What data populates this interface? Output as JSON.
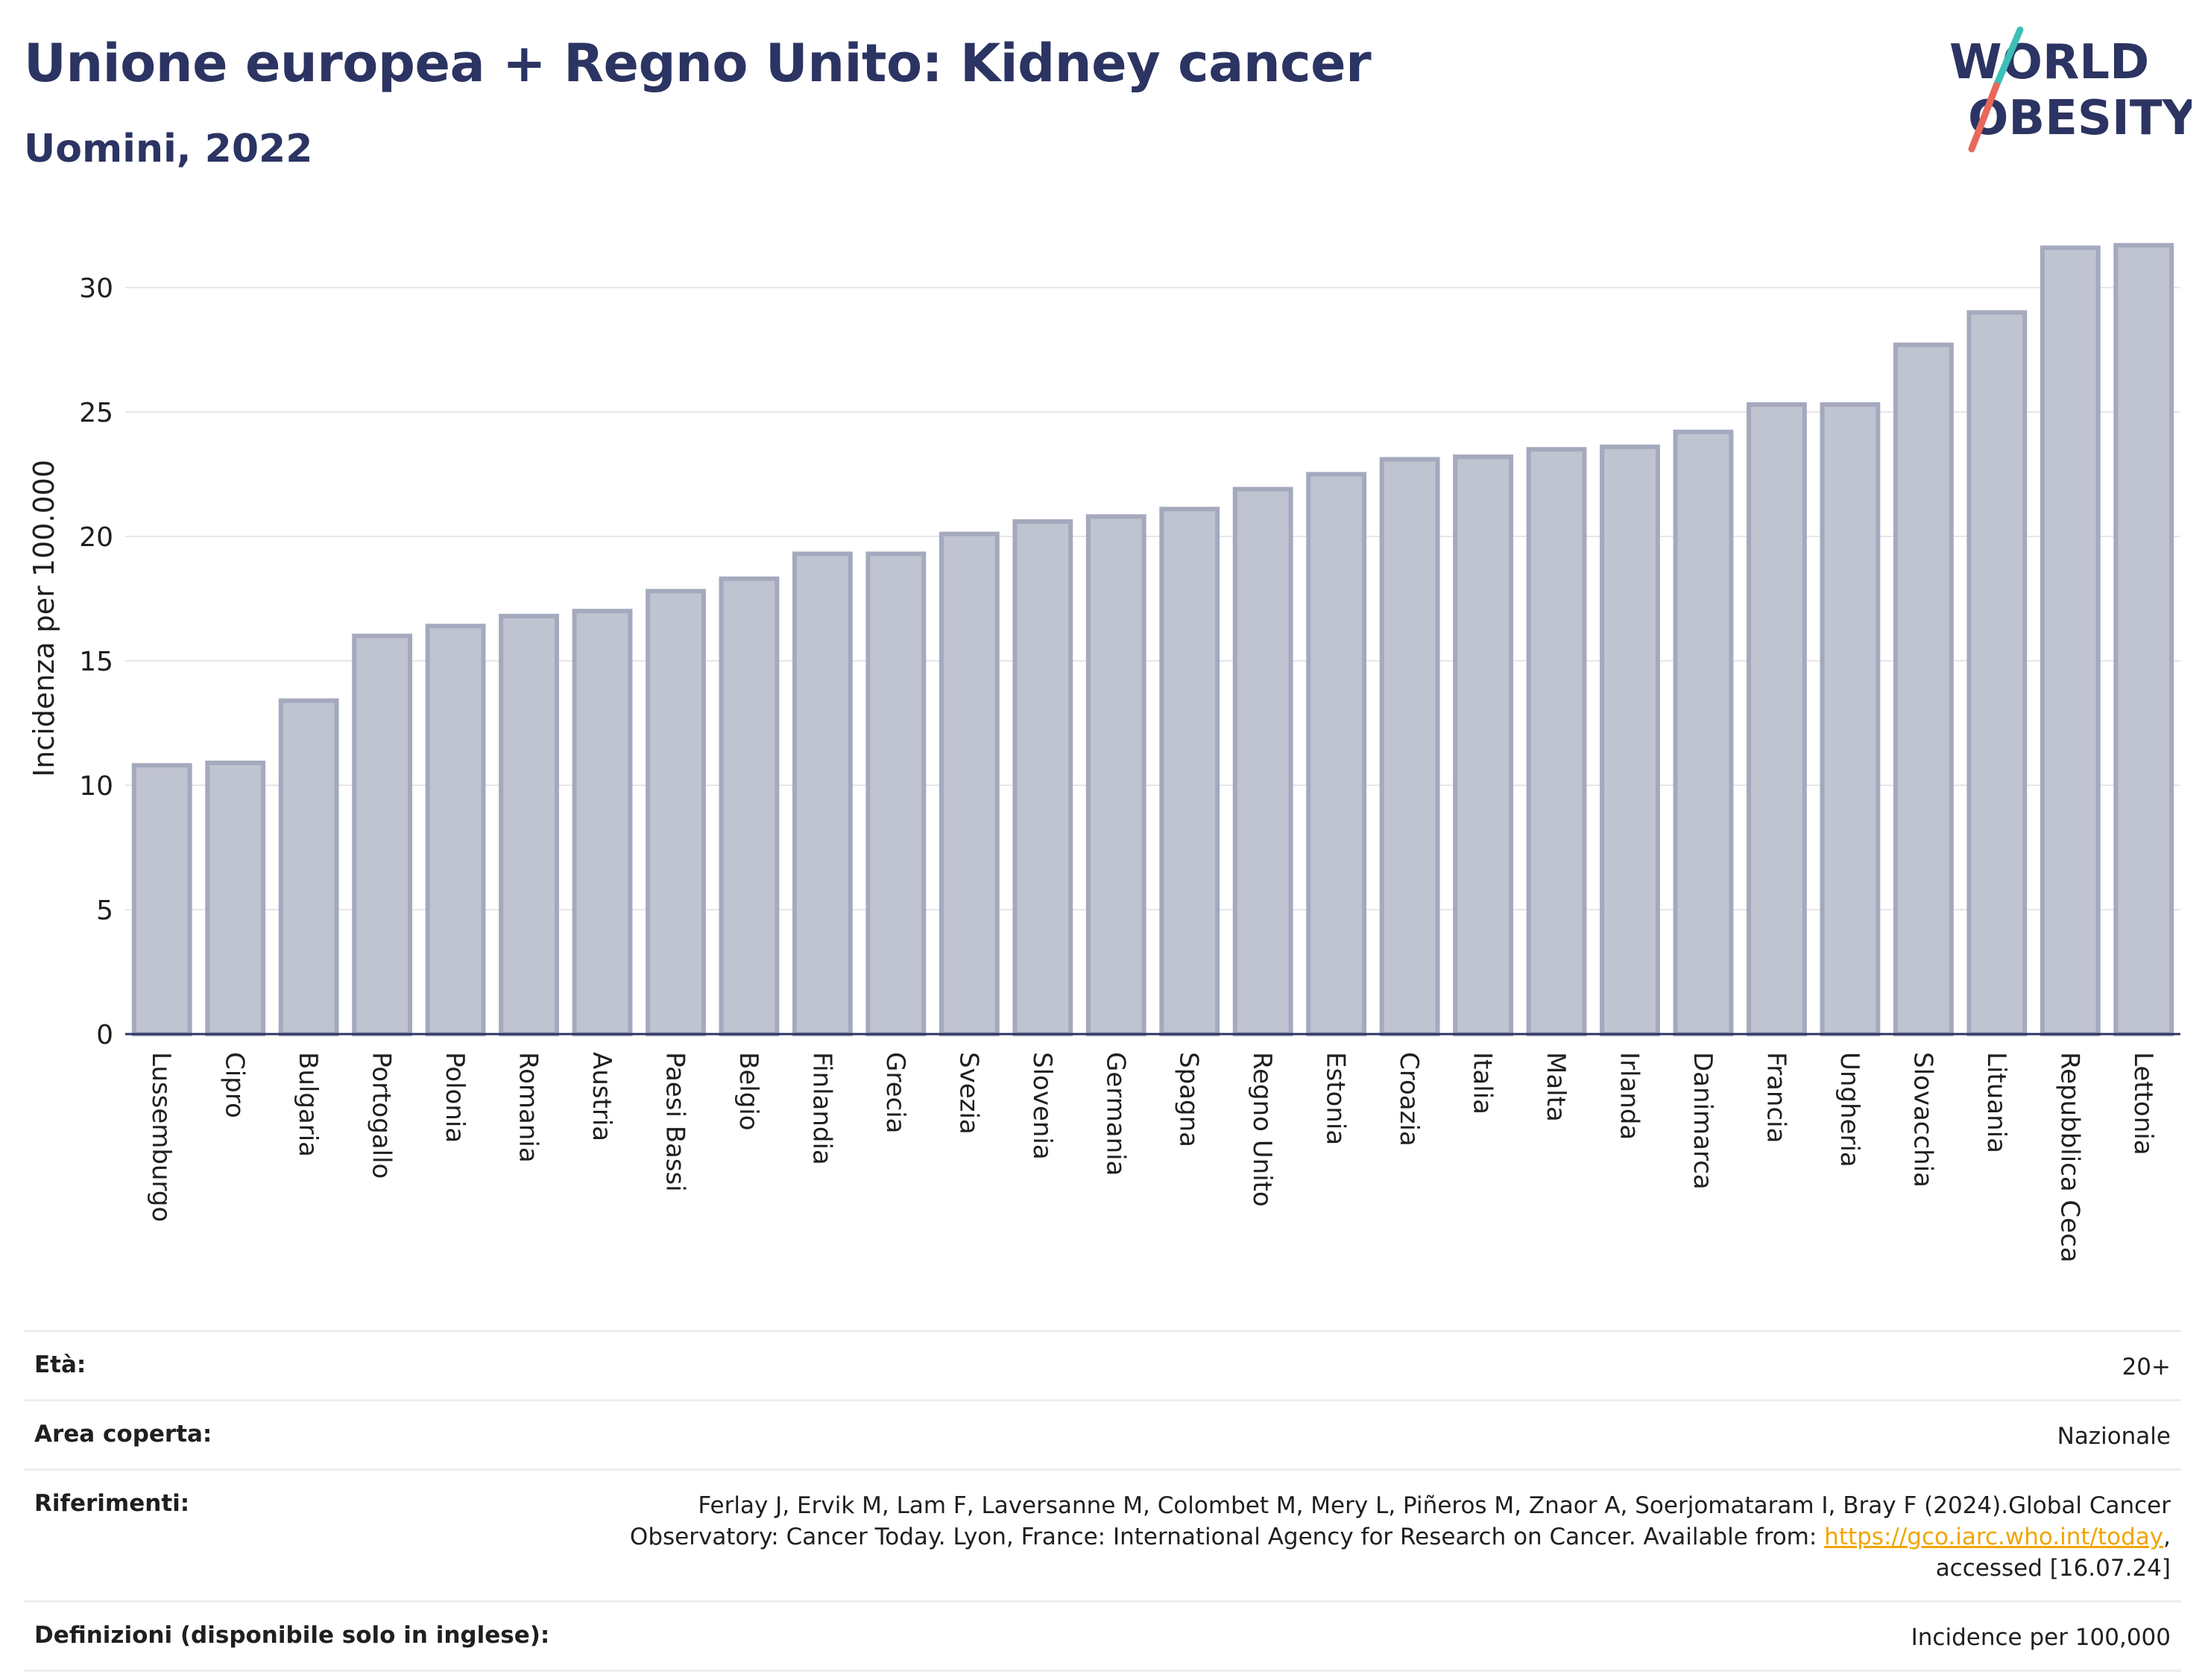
{
  "header": {
    "title": "Unione europea + Regno Unito: Kidney cancer",
    "subtitle": "Uomini, 2022",
    "logo_line1": "WORLD",
    "logo_line2": "OBESITY"
  },
  "colors": {
    "title": "#2b3462",
    "bar_fill": "#c0c3d0",
    "bar_stroke": "#a4a9bd",
    "logo_teal": "#3bbfb6",
    "logo_coral": "#e8685a",
    "link": "#f0a500"
  },
  "chart_data": {
    "type": "bar",
    "ylabel": "Incidenza per 100.000",
    "xlabel": "",
    "ylim": [
      0,
      32
    ],
    "yticks": [
      0,
      5,
      10,
      15,
      20,
      25,
      30
    ],
    "grid": true,
    "categories": [
      "Lussemburgo",
      "Cipro",
      "Bulgaria",
      "Portogallo",
      "Polonia",
      "Romania",
      "Austria",
      "Paesi Bassi",
      "Belgio",
      "Finlandia",
      "Grecia",
      "Svezia",
      "Slovenia",
      "Germania",
      "Spagna",
      "Regno Unito",
      "Estonia",
      "Croazia",
      "Italia",
      "Malta",
      "Irlanda",
      "Danimarca",
      "Francia",
      "Ungheria",
      "Slovacchia",
      "Lituania",
      "Repubblica Ceca",
      "Lettonia"
    ],
    "values": [
      10.8,
      10.9,
      13.4,
      16.0,
      16.4,
      16.8,
      17.0,
      17.8,
      18.3,
      19.3,
      19.3,
      20.1,
      20.6,
      20.8,
      21.1,
      21.9,
      22.5,
      23.1,
      23.2,
      23.5,
      23.6,
      24.2,
      25.3,
      25.3,
      27.7,
      29.0,
      31.6,
      31.7
    ]
  },
  "meta": {
    "age_label": "Età:",
    "age_value": "20+",
    "area_label": "Area coperta:",
    "area_value": "Nazionale",
    "refs_label": "Riferimenti:",
    "refs_line1": "Ferlay J, Ervik M, Lam F, Laversanne M, Colombet M, Mery L, Piñeros M, Znaor A, Soerjomataram I, Bray F (2024).Global Cancer",
    "refs_line2_pre": "Observatory: Cancer Today. Lyon, France: International Agency for Research on Cancer. Available from: ",
    "refs_link": "https://gco.iarc.who.int/today",
    "refs_line2_post": ",",
    "refs_line3": "accessed [16.07.24]",
    "defs_label": "Definizioni (disponibile solo in inglese):",
    "defs_value": "Incidence per 100,000"
  }
}
